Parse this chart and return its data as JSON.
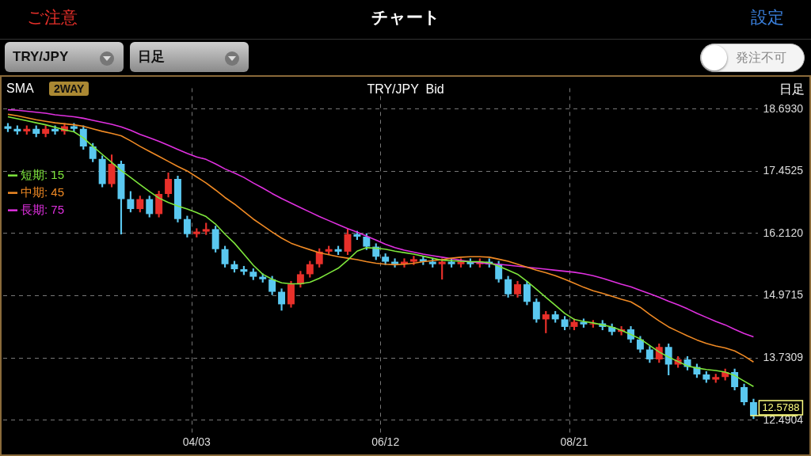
{
  "chart_data": {
    "type": "candlestick",
    "title": "TRY/JPY  Bid",
    "categories": [
      null,
      null,
      null,
      null,
      null,
      null,
      null,
      null,
      null,
      null,
      null,
      null,
      null,
      null,
      null,
      null,
      null,
      null,
      null,
      null,
      "04/03",
      null,
      null,
      null,
      null,
      null,
      null,
      null,
      null,
      null,
      null,
      null,
      null,
      null,
      null,
      null,
      null,
      null,
      null,
      null,
      "06/12",
      null,
      null,
      null,
      null,
      null,
      null,
      null,
      null,
      null,
      null,
      null,
      null,
      null,
      null,
      null,
      null,
      null,
      null,
      null,
      "08/21",
      null,
      null,
      null,
      null,
      null,
      null,
      null,
      null,
      null,
      null,
      null,
      null,
      null,
      null,
      null,
      null,
      null,
      null,
      null
    ],
    "ohlc": [
      [
        18.35,
        18.41,
        18.24,
        18.3
      ],
      [
        18.3,
        18.36,
        18.19,
        18.25
      ],
      [
        18.25,
        18.36,
        18.19,
        18.3
      ],
      [
        18.3,
        18.36,
        18.14,
        18.2
      ],
      [
        18.2,
        18.36,
        18.14,
        18.3
      ],
      [
        18.3,
        18.36,
        18.19,
        18.25
      ],
      [
        18.25,
        18.41,
        18.19,
        18.35
      ],
      [
        18.35,
        18.41,
        18.24,
        18.3
      ],
      [
        18.3,
        18.36,
        17.89,
        17.95
      ],
      [
        17.95,
        18.01,
        17.64,
        17.7
      ],
      [
        17.7,
        17.76,
        17.14,
        17.2
      ],
      [
        17.2,
        17.78,
        17.14,
        17.6
      ],
      [
        17.6,
        17.66,
        16.2,
        16.9
      ],
      [
        16.9,
        17.05,
        16.64,
        16.7
      ],
      [
        16.7,
        16.96,
        16.64,
        16.9
      ],
      [
        16.9,
        16.96,
        16.54,
        16.6
      ],
      [
        16.6,
        17.06,
        16.54,
        17.0
      ],
      [
        17.0,
        17.42,
        16.94,
        17.3
      ],
      [
        17.3,
        17.36,
        16.44,
        16.5
      ],
      [
        16.5,
        16.56,
        16.14,
        16.2
      ],
      [
        16.2,
        16.31,
        16.14,
        16.25
      ],
      [
        16.25,
        16.42,
        16.19,
        16.3
      ],
      [
        16.3,
        16.36,
        15.84,
        15.9
      ],
      [
        15.9,
        15.96,
        15.54,
        15.6
      ],
      [
        15.6,
        15.66,
        15.44,
        15.5
      ],
      [
        15.5,
        15.56,
        15.39,
        15.45
      ],
      [
        15.45,
        15.51,
        15.29,
        15.35
      ],
      [
        15.35,
        15.41,
        15.24,
        15.3
      ],
      [
        15.3,
        15.36,
        14.99,
        15.05
      ],
      [
        15.05,
        15.11,
        14.68,
        14.8
      ],
      [
        14.8,
        15.26,
        14.74,
        15.2
      ],
      [
        15.2,
        15.46,
        15.14,
        15.4
      ],
      [
        15.4,
        15.66,
        15.34,
        15.6
      ],
      [
        15.6,
        15.91,
        15.54,
        15.85
      ],
      [
        15.85,
        15.96,
        15.79,
        15.9
      ],
      [
        15.9,
        15.96,
        15.79,
        15.85
      ],
      [
        15.85,
        16.3,
        15.79,
        16.2
      ],
      [
        16.2,
        16.26,
        16.09,
        16.15
      ],
      [
        16.15,
        16.21,
        15.89,
        15.95
      ],
      [
        15.95,
        16.01,
        15.69,
        15.75
      ],
      [
        15.75,
        15.81,
        15.59,
        15.65
      ],
      [
        15.65,
        15.71,
        15.54,
        15.6
      ],
      [
        15.6,
        15.71,
        15.54,
        15.65
      ],
      [
        15.65,
        15.76,
        15.59,
        15.7
      ],
      [
        15.7,
        15.76,
        15.59,
        15.65
      ],
      [
        15.65,
        15.71,
        15.54,
        15.6
      ],
      [
        15.6,
        15.71,
        15.3,
        15.65
      ],
      [
        15.65,
        15.71,
        15.54,
        15.6
      ],
      [
        15.6,
        15.71,
        15.54,
        15.65
      ],
      [
        15.65,
        15.71,
        15.54,
        15.6
      ],
      [
        15.6,
        15.71,
        15.54,
        15.65
      ],
      [
        15.65,
        15.71,
        15.54,
        15.6
      ],
      [
        15.6,
        15.66,
        15.24,
        15.3
      ],
      [
        15.3,
        15.36,
        14.94,
        15.0
      ],
      [
        15.0,
        15.26,
        14.94,
        15.2
      ],
      [
        15.2,
        15.26,
        14.79,
        14.85
      ],
      [
        14.85,
        14.91,
        14.44,
        14.5
      ],
      [
        14.5,
        14.66,
        14.23,
        14.6
      ],
      [
        14.6,
        14.66,
        14.44,
        14.5
      ],
      [
        14.5,
        14.56,
        14.29,
        14.35
      ],
      [
        14.35,
        14.51,
        14.29,
        14.45
      ],
      [
        14.45,
        14.51,
        14.34,
        14.4
      ],
      [
        14.4,
        14.48,
        14.34,
        14.42
      ],
      [
        14.42,
        14.48,
        14.29,
        14.35
      ],
      [
        14.35,
        14.41,
        14.19,
        14.25
      ],
      [
        14.25,
        14.36,
        14.19,
        14.3
      ],
      [
        14.3,
        14.36,
        14.04,
        14.1
      ],
      [
        14.1,
        14.16,
        13.84,
        13.9
      ],
      [
        13.9,
        13.96,
        13.64,
        13.7
      ],
      [
        13.7,
        14.01,
        13.64,
        13.95
      ],
      [
        13.95,
        14.01,
        13.39,
        13.6
      ],
      [
        13.6,
        13.76,
        13.54,
        13.7
      ],
      [
        13.7,
        13.76,
        13.49,
        13.55
      ],
      [
        13.55,
        13.61,
        13.34,
        13.4
      ],
      [
        13.4,
        13.46,
        13.24,
        13.3
      ],
      [
        13.3,
        13.41,
        13.24,
        13.35
      ],
      [
        13.35,
        13.51,
        13.29,
        13.45
      ],
      [
        13.45,
        13.51,
        13.09,
        13.15
      ],
      [
        13.15,
        13.21,
        12.79,
        12.85
      ],
      [
        12.85,
        12.91,
        12.52,
        12.5788
      ]
    ],
    "colors": [
      "#5ac8f0",
      "#5ac8f0",
      "#e8302a",
      "#5ac8f0",
      "#e8302a",
      "#5ac8f0",
      "#e8302a",
      "#5ac8f0",
      "#5ac8f0",
      "#5ac8f0",
      "#5ac8f0",
      "#e8302a",
      "#5ac8f0",
      "#5ac8f0",
      "#e8302a",
      "#5ac8f0",
      "#e8302a",
      "#e8302a",
      "#5ac8f0",
      "#5ac8f0",
      "#e8302a",
      "#e8302a",
      "#5ac8f0",
      "#5ac8f0",
      "#5ac8f0",
      "#5ac8f0",
      "#5ac8f0",
      "#5ac8f0",
      "#5ac8f0",
      "#5ac8f0",
      "#e8302a",
      "#e8302a",
      "#e8302a",
      "#e8302a",
      "#e8302a",
      "#5ac8f0",
      "#e8302a",
      "#5ac8f0",
      "#5ac8f0",
      "#5ac8f0",
      "#5ac8f0",
      "#5ac8f0",
      "#e8302a",
      "#e8302a",
      "#5ac8f0",
      "#5ac8f0",
      "#e8302a",
      "#5ac8f0",
      "#e8302a",
      "#5ac8f0",
      "#e8302a",
      "#5ac8f0",
      "#5ac8f0",
      "#5ac8f0",
      "#e8302a",
      "#5ac8f0",
      "#5ac8f0",
      "#e8302a",
      "#5ac8f0",
      "#5ac8f0",
      "#e8302a",
      "#5ac8f0",
      "#e8302a",
      "#5ac8f0",
      "#5ac8f0",
      "#e8302a",
      "#5ac8f0",
      "#5ac8f0",
      "#5ac8f0",
      "#e8302a",
      "#5ac8f0",
      "#e8302a",
      "#5ac8f0",
      "#5ac8f0",
      "#5ac8f0",
      "#e8302a",
      "#e8302a",
      "#5ac8f0",
      "#5ac8f0",
      "#5ac8f0"
    ],
    "series": [
      {
        "name": "短期: 15",
        "type": "line",
        "color": "#7ee63c",
        "values": [
          18.54,
          18.5,
          18.46,
          18.42,
          18.38,
          18.33,
          18.28,
          18.24,
          18.12,
          17.95,
          17.79,
          17.63,
          17.47,
          17.33,
          17.19,
          17.05,
          16.92,
          16.83,
          16.76,
          16.7,
          16.63,
          16.55,
          16.4,
          16.2,
          16.02,
          15.8,
          15.58,
          15.4,
          15.3,
          15.23,
          15.21,
          15.21,
          15.24,
          15.32,
          15.42,
          15.52,
          15.68,
          15.86,
          15.93,
          15.92,
          15.9,
          15.86,
          15.83,
          15.8,
          15.76,
          15.72,
          15.68,
          15.67,
          15.66,
          15.65,
          15.65,
          15.63,
          15.56,
          15.48,
          15.4,
          15.26,
          15.1,
          14.94,
          14.78,
          14.62,
          14.5,
          14.46,
          14.43,
          14.39,
          14.35,
          14.28,
          14.2,
          14.11,
          13.98,
          13.85,
          13.75,
          13.66,
          13.57,
          13.53,
          13.5,
          13.48,
          13.45,
          13.38,
          13.27,
          13.16
        ]
      },
      {
        "name": "中期: 45",
        "type": "line",
        "color": "#f08a24",
        "values": [
          18.59,
          18.56,
          18.52,
          18.48,
          18.45,
          18.42,
          18.4,
          18.38,
          18.35,
          18.3,
          18.25,
          18.21,
          18.16,
          18.06,
          17.95,
          17.85,
          17.75,
          17.65,
          17.55,
          17.46,
          17.34,
          17.22,
          17.08,
          16.93,
          16.8,
          16.65,
          16.5,
          16.37,
          16.24,
          16.12,
          16.02,
          15.95,
          15.89,
          15.83,
          15.79,
          15.75,
          15.72,
          15.69,
          15.65,
          15.62,
          15.6,
          15.59,
          15.6,
          15.62,
          15.65,
          15.67,
          15.69,
          15.72,
          15.74,
          15.75,
          15.75,
          15.74,
          15.7,
          15.66,
          15.6,
          15.54,
          15.48,
          15.43,
          15.37,
          15.3,
          15.22,
          15.14,
          15.07,
          15.02,
          14.96,
          14.9,
          14.85,
          14.74,
          14.6,
          14.47,
          14.35,
          14.26,
          14.17,
          14.09,
          14.02,
          13.97,
          13.93,
          13.87,
          13.77,
          13.65
        ]
      },
      {
        "name": "長期: 75",
        "type": "line",
        "color": "#e030e0",
        "values": [
          18.68,
          18.67,
          18.65,
          18.63,
          18.61,
          18.58,
          18.56,
          18.54,
          18.51,
          18.47,
          18.43,
          18.39,
          18.34,
          18.27,
          18.19,
          18.12,
          18.05,
          17.97,
          17.89,
          17.81,
          17.74,
          17.69,
          17.6,
          17.5,
          17.42,
          17.33,
          17.22,
          17.12,
          17.01,
          16.91,
          16.82,
          16.73,
          16.64,
          16.55,
          16.47,
          16.39,
          16.31,
          16.24,
          16.16,
          16.08,
          16.0,
          15.93,
          15.88,
          15.84,
          15.8,
          15.77,
          15.74,
          15.71,
          15.68,
          15.65,
          15.63,
          15.61,
          15.6,
          15.58,
          15.56,
          15.54,
          15.52,
          15.5,
          15.48,
          15.46,
          15.44,
          15.41,
          15.37,
          15.32,
          15.26,
          15.2,
          15.15,
          15.08,
          15.01,
          14.94,
          14.86,
          14.79,
          14.71,
          14.62,
          14.54,
          14.46,
          14.39,
          14.3,
          14.22,
          14.15
        ]
      }
    ],
    "ylim": [
      12.23,
      19.11
    ],
    "yticks": [
      12.4904,
      13.7309,
      14.9715,
      {
        "value": 16.212,
        "label": "16.2120"
      },
      17.4525,
      {
        "value": 18.693,
        "label": "18.6930"
      }
    ],
    "grid": true,
    "legend": "top left",
    "marker": "none",
    "line_style": "solid",
    "ref_lines": [
      {
        "axis": "y",
        "value": 12.5788,
        "label": "12.5788",
        "color": "#ffff80"
      }
    ],
    "annotations": [
      "ご注意",
      "チャート",
      "設定",
      "TRY/JPY",
      "日足",
      "発注不可",
      "SMA",
      "日足",
      "2WAY"
    ]
  }
}
